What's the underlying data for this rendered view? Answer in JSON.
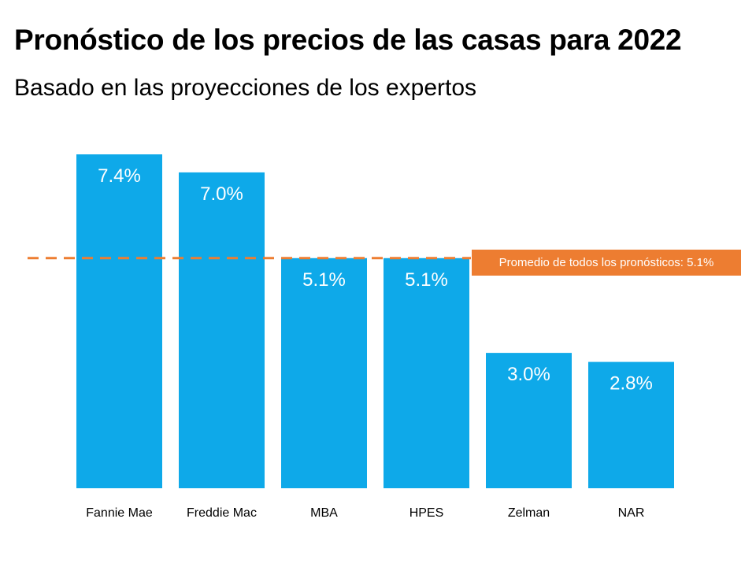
{
  "chart_data": {
    "type": "bar",
    "title": "Pronóstico de los precios de las casas para 2022",
    "subtitle": "Basado en las proyecciones de los expertos",
    "categories": [
      "Fannie Mae",
      "Freddie Mac",
      "MBA",
      "HPES",
      "Zelman",
      "NAR"
    ],
    "values": [
      7.4,
      7.0,
      5.1,
      5.1,
      3.0,
      2.8
    ],
    "data_labels": [
      "7.4%",
      "7.0%",
      "5.1%",
      "5.1%",
      "3.0%",
      "2.8%"
    ],
    "ylim": [
      0,
      7.4
    ],
    "grid": false,
    "reference_line": {
      "value": 5.1,
      "label": "Promedio de todos los pronósticos: 5.1%",
      "color": "#ED7D31",
      "style": "dashed"
    },
    "colors": {
      "bar": "#0EA9E9",
      "reference": "#ED7D31"
    }
  }
}
